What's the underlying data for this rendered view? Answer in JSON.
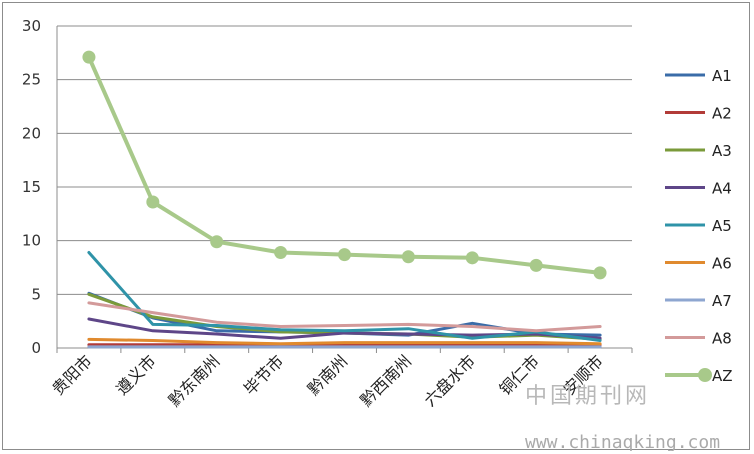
{
  "chart_data": {
    "type": "line",
    "title": "",
    "xlabel": "",
    "ylabel": "",
    "ylim": [
      0,
      30
    ],
    "yticks": [
      0,
      5,
      10,
      15,
      20,
      25,
      30
    ],
    "grid": true,
    "legend_position": "right",
    "categories": [
      "贵阳市",
      "遵义市",
      "黔东南州",
      "毕节市",
      "黔南州",
      "黔西南州",
      "六盘水市",
      "铜仁市",
      "安顺市"
    ],
    "series": [
      {
        "name": "A1",
        "color": "#3a6ca8",
        "marker": false,
        "values": [
          5.1,
          2.8,
          1.6,
          1.5,
          1.4,
          1.2,
          2.3,
          1.3,
          1.2
        ]
      },
      {
        "name": "A2",
        "color": "#b23b38",
        "marker": false,
        "values": [
          0.3,
          0.3,
          0.3,
          0.3,
          0.3,
          0.3,
          0.3,
          0.3,
          0.3
        ]
      },
      {
        "name": "A3",
        "color": "#7a9a3a",
        "marker": false,
        "values": [
          5.0,
          2.9,
          2.0,
          1.5,
          1.4,
          1.3,
          1.0,
          1.2,
          0.8
        ]
      },
      {
        "name": "A4",
        "color": "#5e4688",
        "marker": false,
        "values": [
          2.7,
          1.6,
          1.3,
          0.9,
          1.4,
          1.3,
          1.2,
          1.3,
          0.9
        ]
      },
      {
        "name": "A5",
        "color": "#2f93a8",
        "marker": false,
        "values": [
          8.9,
          2.2,
          2.1,
          1.7,
          1.6,
          1.8,
          0.9,
          1.5,
          0.7
        ]
      },
      {
        "name": "A6",
        "color": "#e08a2e",
        "marker": false,
        "values": [
          0.8,
          0.7,
          0.5,
          0.4,
          0.5,
          0.5,
          0.5,
          0.5,
          0.4
        ]
      },
      {
        "name": "A7",
        "color": "#8ea6d0",
        "marker": false,
        "values": [
          0.1,
          0.1,
          0.1,
          0.1,
          0.1,
          0.1,
          0.1,
          0.1,
          0.1
        ]
      },
      {
        "name": "A8",
        "color": "#d39a9a",
        "marker": false,
        "values": [
          4.2,
          3.3,
          2.4,
          2.0,
          2.1,
          2.2,
          2.0,
          1.6,
          2.0
        ]
      },
      {
        "name": "AZ",
        "color": "#a8c98a",
        "marker": true,
        "values": [
          27.1,
          13.6,
          9.9,
          8.9,
          8.7,
          8.5,
          8.4,
          7.7,
          7.0
        ]
      }
    ]
  },
  "watermark": {
    "text1": "中国期刊网",
    "text2": "www.chinaqking.com"
  }
}
